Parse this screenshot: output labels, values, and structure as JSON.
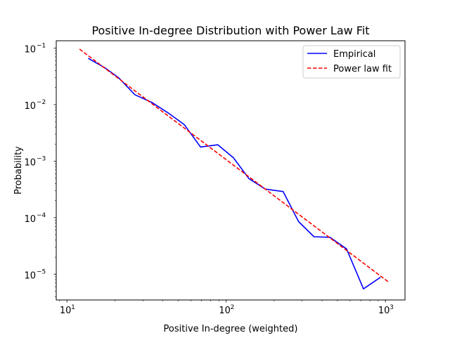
{
  "chart_data": {
    "type": "line",
    "title": "Positive In-degree Distribution with Power Law Fit",
    "xlabel": "Positive In-degree (weighted)",
    "ylabel": "Probability",
    "xscale": "log",
    "yscale": "log",
    "xlim": [
      8.57,
      1327
    ],
    "ylim": [
      3.5e-06,
      0.135
    ],
    "grid": false,
    "legend_position": "top-right",
    "x_ticks": [
      {
        "value": 10,
        "base": "10",
        "exp": "1"
      },
      {
        "value": 100,
        "base": "10",
        "exp": "2"
      },
      {
        "value": 1000,
        "base": "10",
        "exp": "3"
      }
    ],
    "y_ticks": [
      {
        "value": 0.1,
        "base": "10",
        "exp": "−1"
      },
      {
        "value": 0.01,
        "base": "10",
        "exp": "−2"
      },
      {
        "value": 0.001,
        "base": "10",
        "exp": "−3"
      },
      {
        "value": 0.0001,
        "base": "10",
        "exp": "−4"
      },
      {
        "value": 1e-05,
        "base": "10",
        "exp": "−5"
      }
    ],
    "series": [
      {
        "name": "Empirical",
        "color": "#0000ff",
        "dash": "solid",
        "x": [
          13.6,
          17.3,
          21.1,
          26.7,
          34.0,
          43.0,
          54.7,
          69.0,
          88.6,
          111.0,
          139.0,
          176.0,
          228.0,
          285.0,
          356.0,
          448.0,
          570.0,
          728.0,
          930.0
        ],
        "y": [
          0.066,
          0.045,
          0.03,
          0.015,
          0.011,
          0.0072,
          0.0044,
          0.00178,
          0.00195,
          0.00115,
          0.00049,
          0.00032,
          0.00029,
          8.5e-05,
          4.6e-05,
          4.5e-05,
          2.8e-05,
          5.5e-06,
          8.8e-06
        ]
      },
      {
        "name": "Power law fit",
        "color": "#ff0000",
        "dash": "dashed",
        "x": [
          12.0,
          1050.0
        ],
        "y": [
          0.096,
          7.2e-06
        ]
      }
    ]
  }
}
